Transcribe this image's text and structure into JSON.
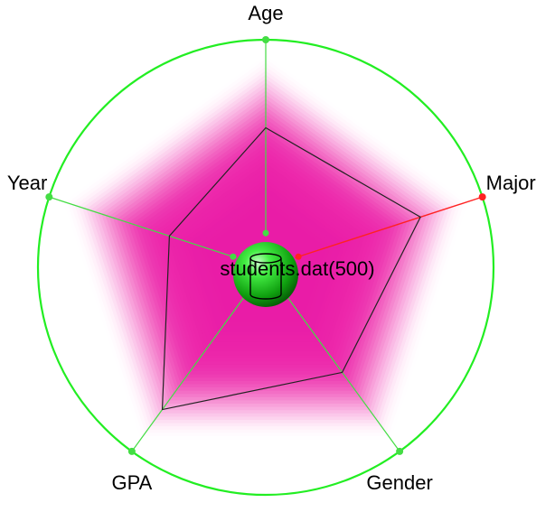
{
  "chart_data": {
    "type": "radar",
    "axes": [
      "Age",
      "Major",
      "Gender",
      "GPA",
      "Year"
    ],
    "selected_axis": "Major",
    "series": [
      {
        "values": [
          0.54,
          0.66,
          0.49,
          0.73,
          0.34
        ]
      }
    ],
    "center_label": "students.dat(500)",
    "range": [
      0,
      1
    ],
    "grid": false,
    "legend": "none"
  },
  "colors": {
    "outer_ring": "#22ee22",
    "axis_line": "#44dd44",
    "selected_axis": "#ff2222",
    "band": "#ee1aa8",
    "polygon_stroke": "#222222",
    "center_sphere": "#11aa11",
    "background": "#ffffff"
  }
}
